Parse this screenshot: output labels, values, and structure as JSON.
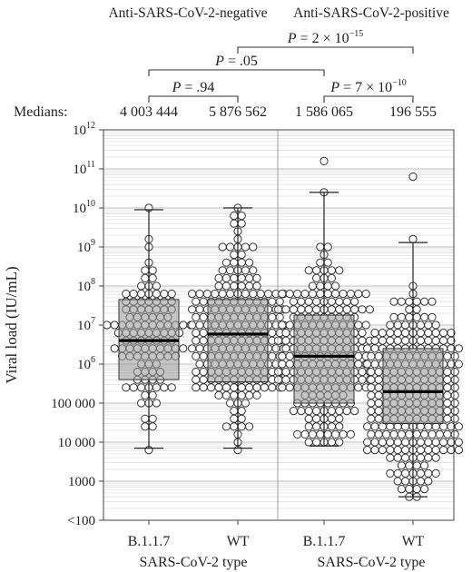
{
  "chart_data": {
    "type": "boxplot",
    "ylabel": "Viral load (IU/mL)",
    "y_scale": "log10",
    "ylim": [
      100,
      1000000000000
    ],
    "y_ticks": [
      {
        "value": 100,
        "label": "<100",
        "sup": ""
      },
      {
        "value": 1000,
        "label": "1000",
        "sup": ""
      },
      {
        "value": 10000,
        "label": "10 000",
        "sup": ""
      },
      {
        "value": 100000,
        "label": "100 000",
        "sup": ""
      },
      {
        "value": 1000000,
        "label": "10",
        "sup": "6"
      },
      {
        "value": 10000000,
        "label": "10",
        "sup": "7"
      },
      {
        "value": 100000000,
        "label": "10",
        "sup": "8"
      },
      {
        "value": 1000000000,
        "label": "10",
        "sup": "9"
      },
      {
        "value": 10000000000,
        "label": "10",
        "sup": "10"
      },
      {
        "value": 100000000000,
        "label": "10",
        "sup": "11"
      },
      {
        "value": 1000000000000,
        "label": "10",
        "sup": "12"
      }
    ],
    "grid": "horizontal",
    "panels": [
      {
        "title": "Anti-SARS-CoV-2-negative",
        "xlabel": "SARS-CoV-2 type"
      },
      {
        "title": "Anti-SARS-CoV-2-positive",
        "xlabel": "SARS-CoV-2 type"
      }
    ],
    "medians_label": "Medians:",
    "groups": [
      {
        "panel": 0,
        "label": "B.1.1.7",
        "median_label": "4 003 444",
        "median": 4003444,
        "q1": 400000,
        "q3": 45000000,
        "whisker_low": 7000,
        "whisker_high": 9000000000,
        "n_points": 110,
        "outliers": []
      },
      {
        "panel": 0,
        "label": "WT",
        "median_label": "5 876 562",
        "median": 5876562,
        "q1": 350000,
        "q3": 45000000,
        "whisker_low": 7000,
        "whisker_high": 10000000000,
        "n_points": 260,
        "outliers": []
      },
      {
        "panel": 1,
        "label": "B.1.1.7",
        "median_label": "1 586 065",
        "median": 1586065,
        "q1": 100000,
        "q3": 18000000,
        "whisker_low": 8000,
        "whisker_high": 25000000000,
        "n_points": 250,
        "outliers": [
          140000000000
        ]
      },
      {
        "panel": 1,
        "label": "WT",
        "median_label": "196 555",
        "median": 196555,
        "q1": 30000,
        "q3": 2500000,
        "whisker_low": 400,
        "whisker_high": 1300000000,
        "n_points": 480,
        "outliers": [
          55000000000
        ]
      }
    ],
    "comparisons": [
      {
        "from": 0,
        "to": 1,
        "label": "P = .94"
      },
      {
        "from": 0,
        "to": 2,
        "label": "P = .05"
      },
      {
        "from": 2,
        "to": 3,
        "label": "P = 7 × 10",
        "exp": "−10"
      },
      {
        "from": 1,
        "to": 3,
        "label": "P = 2 × 10",
        "exp": "−15"
      }
    ]
  }
}
